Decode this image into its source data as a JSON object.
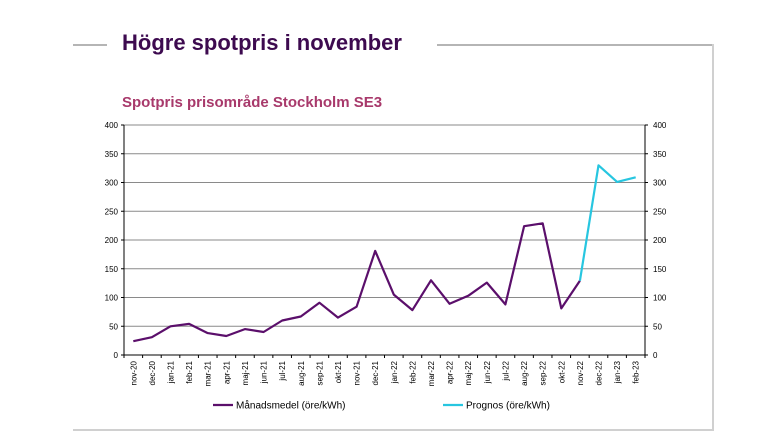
{
  "page": {
    "title": "Högre spotpris i november"
  },
  "chart_data": {
    "type": "line",
    "title": "Spotpris prisområde Stockholm SE3",
    "xlabel": "",
    "ylabel": "",
    "categories": [
      "nov-20",
      "dec-20",
      "jan-21",
      "feb-21",
      "mar-21",
      "apr-21",
      "maj-21",
      "jun-21",
      "jul-21",
      "aug-21",
      "sep-21",
      "okt-21",
      "nov-21",
      "dec-21",
      "jan-22",
      "feb-22",
      "mar-22",
      "apr-22",
      "maj-22",
      "jun-22",
      "jul-22",
      "aug-22",
      "sep-22",
      "okt-22",
      "nov-22",
      "dec-22",
      "jan-23",
      "feb-23"
    ],
    "ylim": [
      0,
      400
    ],
    "yticks": [
      0,
      50,
      100,
      150,
      200,
      250,
      300,
      350,
      400
    ],
    "grid": true,
    "secondary_y_axis": true,
    "legend_position": "bottom",
    "series": [
      {
        "name": "Månadsmedel (öre/kWh)",
        "color": "#5b0f6b",
        "values": [
          24,
          31,
          50,
          54,
          38,
          33,
          45,
          40,
          60,
          67,
          91,
          65,
          84,
          181,
          105,
          78,
          130,
          89,
          103,
          126,
          88,
          224,
          229,
          81,
          129,
          null,
          null,
          null
        ]
      },
      {
        "name": "Prognos (öre/kWh)",
        "color": "#27c6e0",
        "values": [
          null,
          null,
          null,
          null,
          null,
          null,
          null,
          null,
          null,
          null,
          null,
          null,
          null,
          null,
          null,
          null,
          null,
          null,
          null,
          null,
          null,
          null,
          null,
          null,
          129,
          330,
          301,
          309
        ]
      }
    ]
  }
}
